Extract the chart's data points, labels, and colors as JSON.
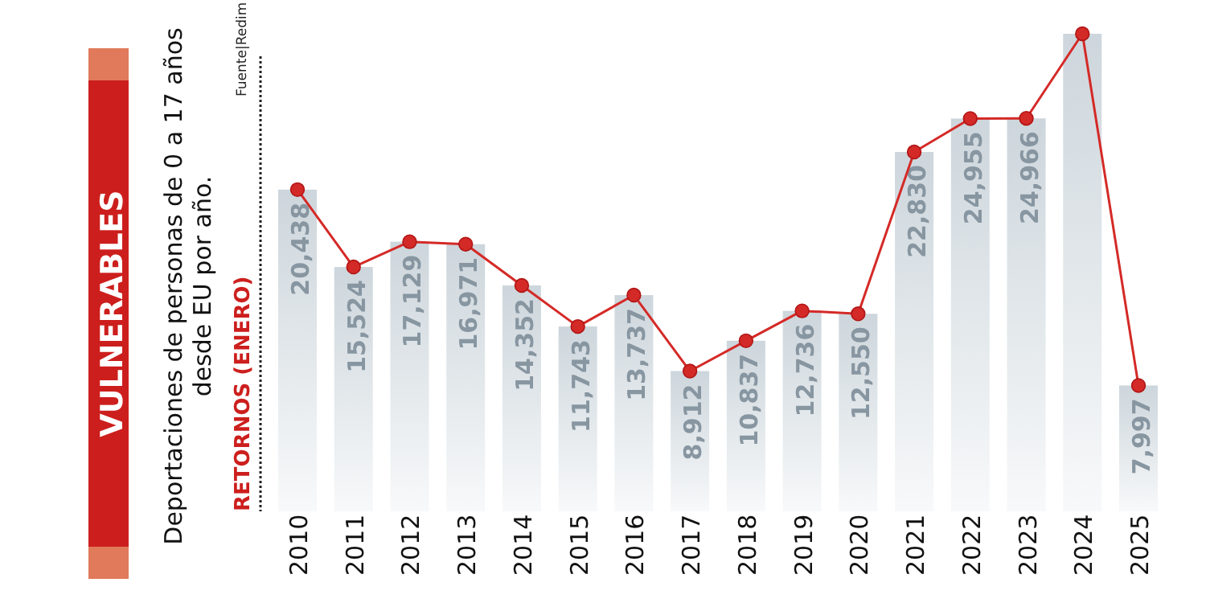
{
  "chart_data": {
    "type": "bar",
    "title": "VULNERABLES",
    "subtitle": "Deportaciones de personas de 0 a 17 años desde EU por año.",
    "ylabel": "RETORNOS (ENERO)",
    "annotations": [
      "Fuente|Redim"
    ],
    "categories": [
      "2010",
      "2011",
      "2012",
      "2013",
      "2014",
      "2015",
      "2016",
      "2017",
      "2018",
      "2019",
      "2020",
      "2021",
      "2022",
      "2023",
      "2024",
      "2025"
    ],
    "series": [
      {
        "color": "#cdd6dc",
        "values": [
          20438,
          15524,
          17129,
          16971,
          14352,
          11743,
          13737,
          8912,
          10837,
          12736,
          12550,
          22830,
          24955,
          24966,
          30340,
          7997
        ],
        "value_labels": [
          "20,438",
          "15,524",
          "17,129",
          "16,971",
          "14,352",
          "11,743",
          "13,737",
          "8,912",
          "10,837",
          "12,736",
          "12,550",
          "22,830",
          "24,955",
          "24,966",
          null,
          "7,997"
        ]
      },
      {
        "type": "line",
        "color": "#d42a27",
        "values": [
          20438,
          15524,
          17129,
          16971,
          14352,
          11743,
          13737,
          8912,
          10837,
          12736,
          12550,
          22830,
          24955,
          24966,
          30340,
          7997
        ]
      }
    ],
    "marker": "circle",
    "line_style": "solid"
  }
}
